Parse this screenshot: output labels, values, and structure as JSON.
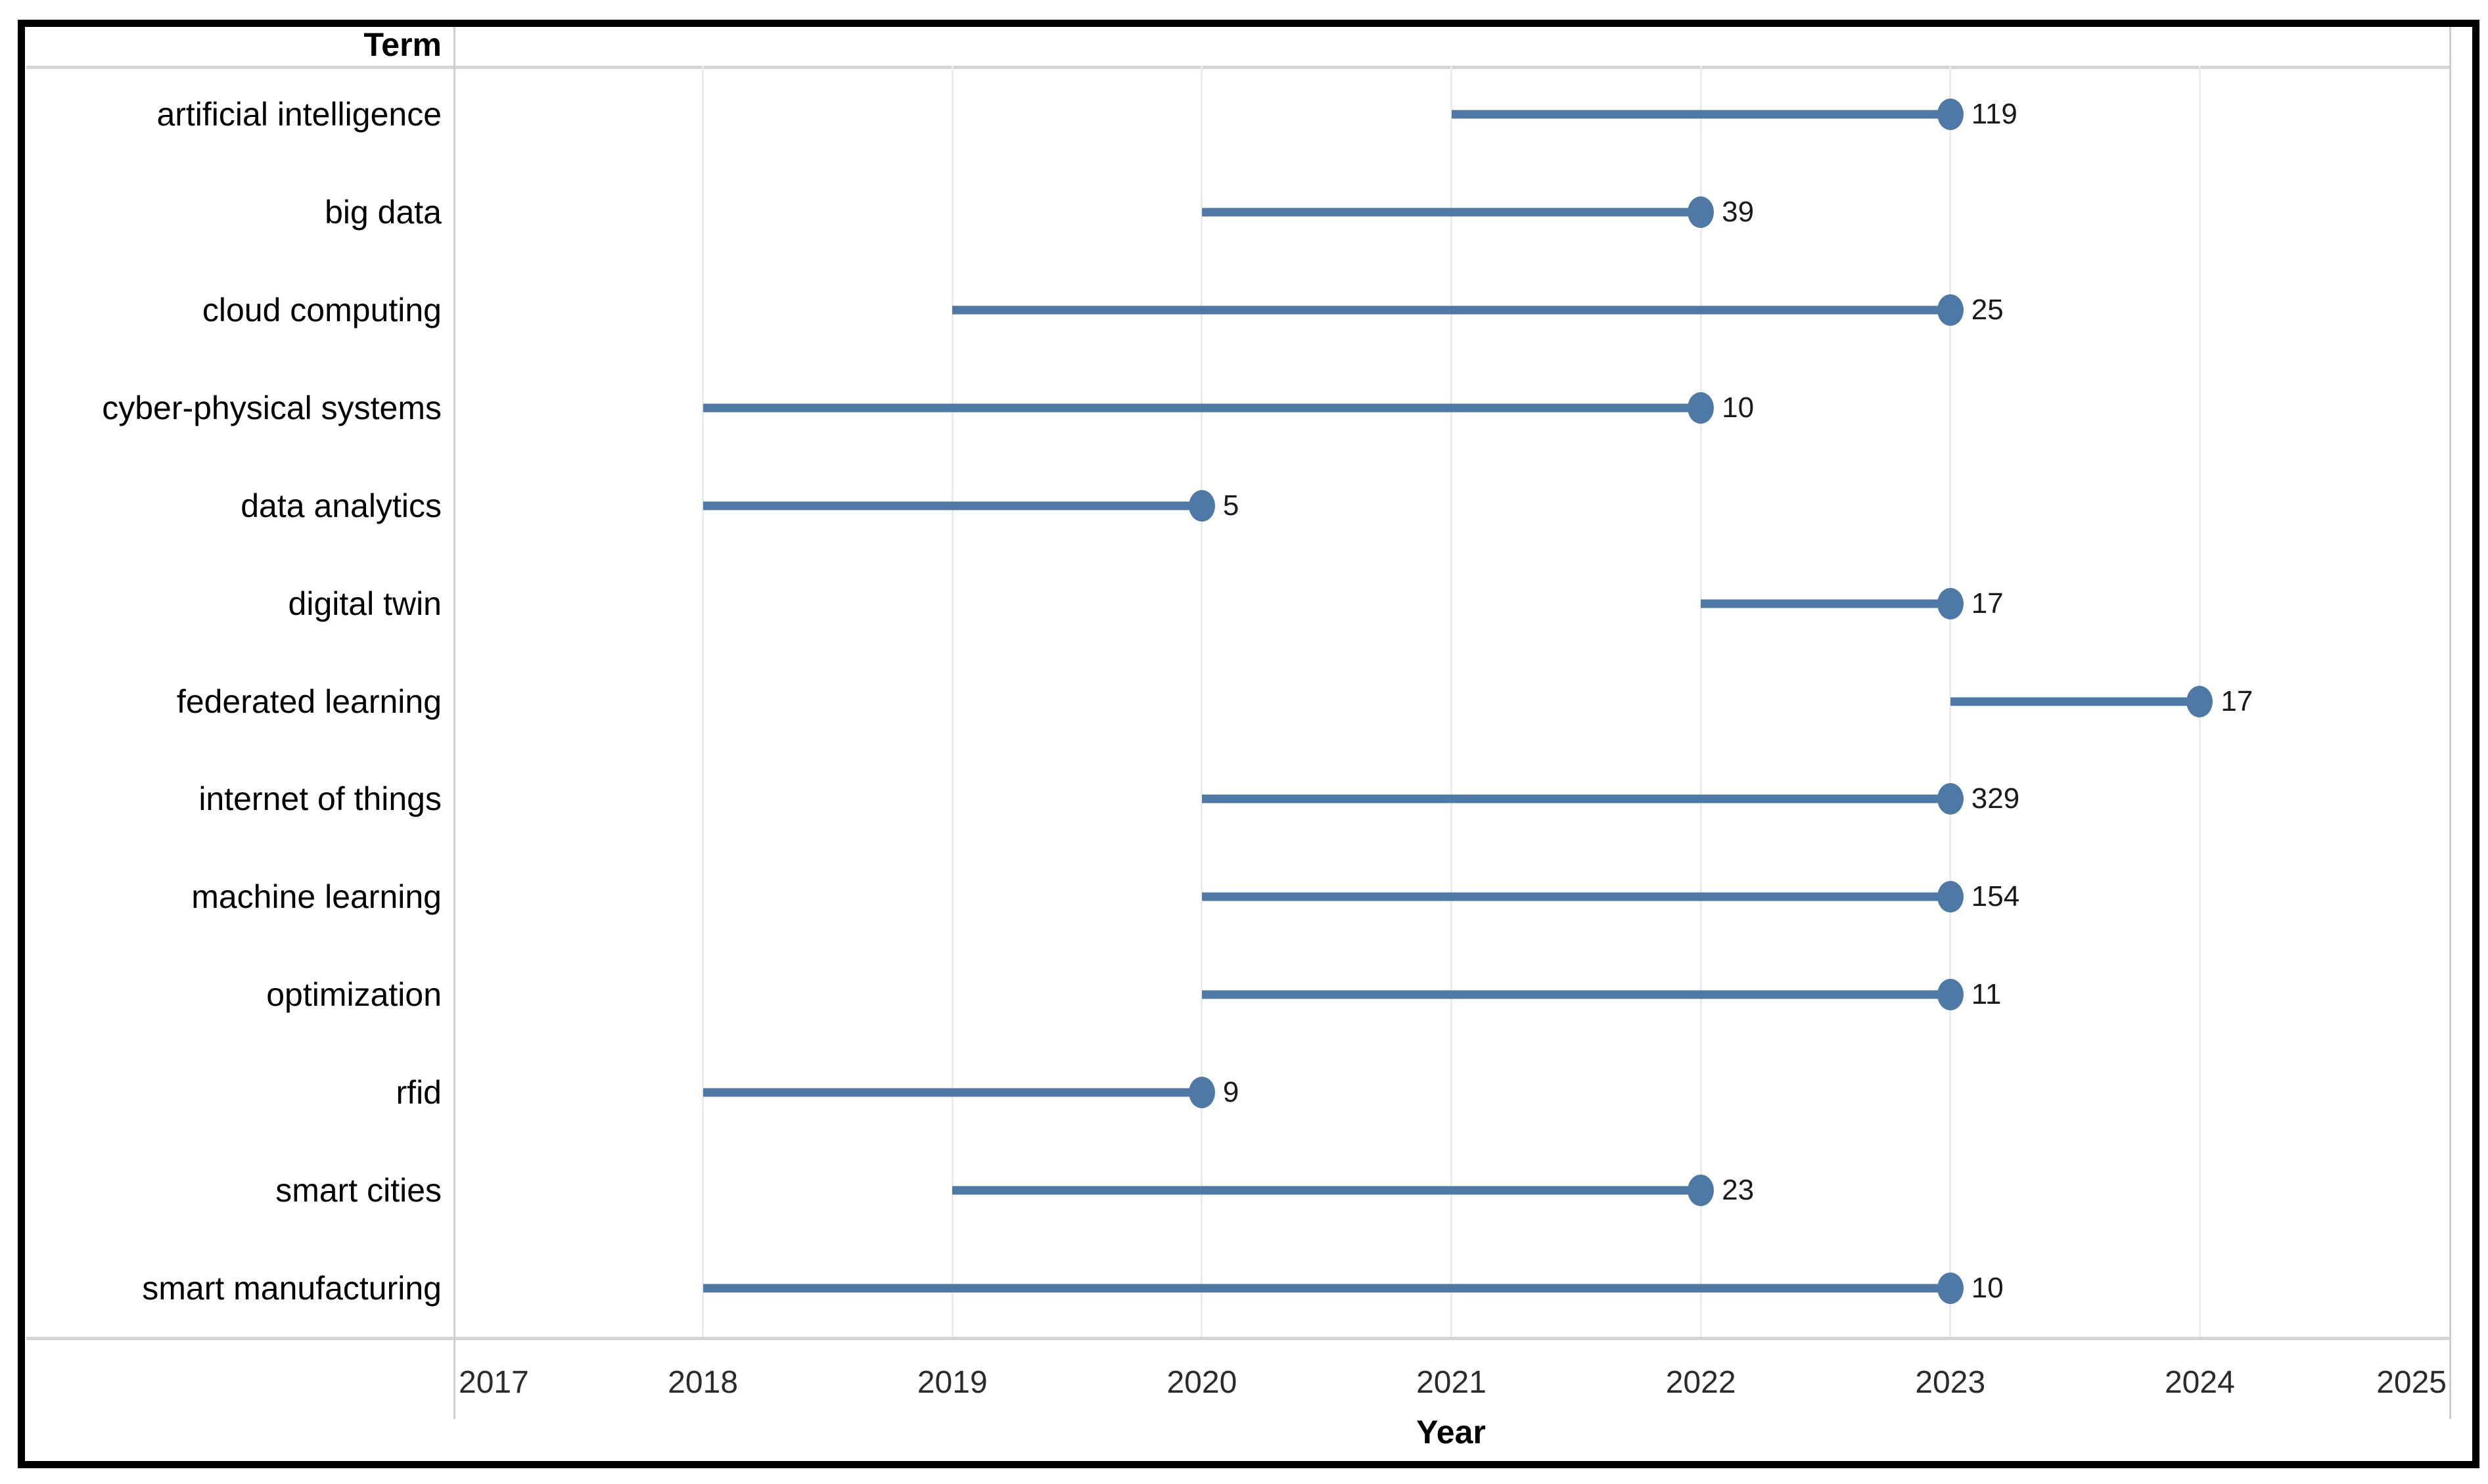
{
  "chart_data": {
    "type": "line",
    "variant": "lollipop-timeline",
    "title": "",
    "xlabel": "Year",
    "ylabel_header": "Term",
    "xlim": [
      2017,
      2025
    ],
    "x_ticks": [
      2017,
      2018,
      2019,
      2020,
      2021,
      2022,
      2023,
      2024,
      2025
    ],
    "grid": "vertical-light-gridlines",
    "legend": "none",
    "marker_color": "#4e79a7",
    "rows": [
      {
        "term": "artificial intelligence",
        "start": 2021,
        "end": 2023,
        "value": 119
      },
      {
        "term": "big data",
        "start": 2020,
        "end": 2022,
        "value": 39
      },
      {
        "term": "cloud computing",
        "start": 2019,
        "end": 2023,
        "value": 25
      },
      {
        "term": "cyber-physical systems",
        "start": 2018,
        "end": 2022,
        "value": 10
      },
      {
        "term": "data analytics",
        "start": 2018,
        "end": 2020,
        "value": 5
      },
      {
        "term": "digital twin",
        "start": 2022,
        "end": 2023,
        "value": 17
      },
      {
        "term": "federated learning",
        "start": 2023,
        "end": 2024,
        "value": 17
      },
      {
        "term": "internet of things",
        "start": 2020,
        "end": 2023,
        "value": 329
      },
      {
        "term": "machine learning",
        "start": 2020,
        "end": 2023,
        "value": 154
      },
      {
        "term": "optimization",
        "start": 2020,
        "end": 2023,
        "value": 11
      },
      {
        "term": "rfid",
        "start": 2018,
        "end": 2020,
        "value": 9
      },
      {
        "term": "smart cities",
        "start": 2019,
        "end": 2022,
        "value": 23
      },
      {
        "term": "smart manufacturing",
        "start": 2018,
        "end": 2023,
        "value": 10
      }
    ],
    "colors": {
      "line": "#4e79a7",
      "gridline": "#ececec",
      "pane_boundary": "#cfcfcf",
      "separator": "#d4d4d4",
      "border": "#000000",
      "term_text": "#000000",
      "tick_text": "#2b2b2b",
      "value_text": "#1a1a1a"
    }
  }
}
